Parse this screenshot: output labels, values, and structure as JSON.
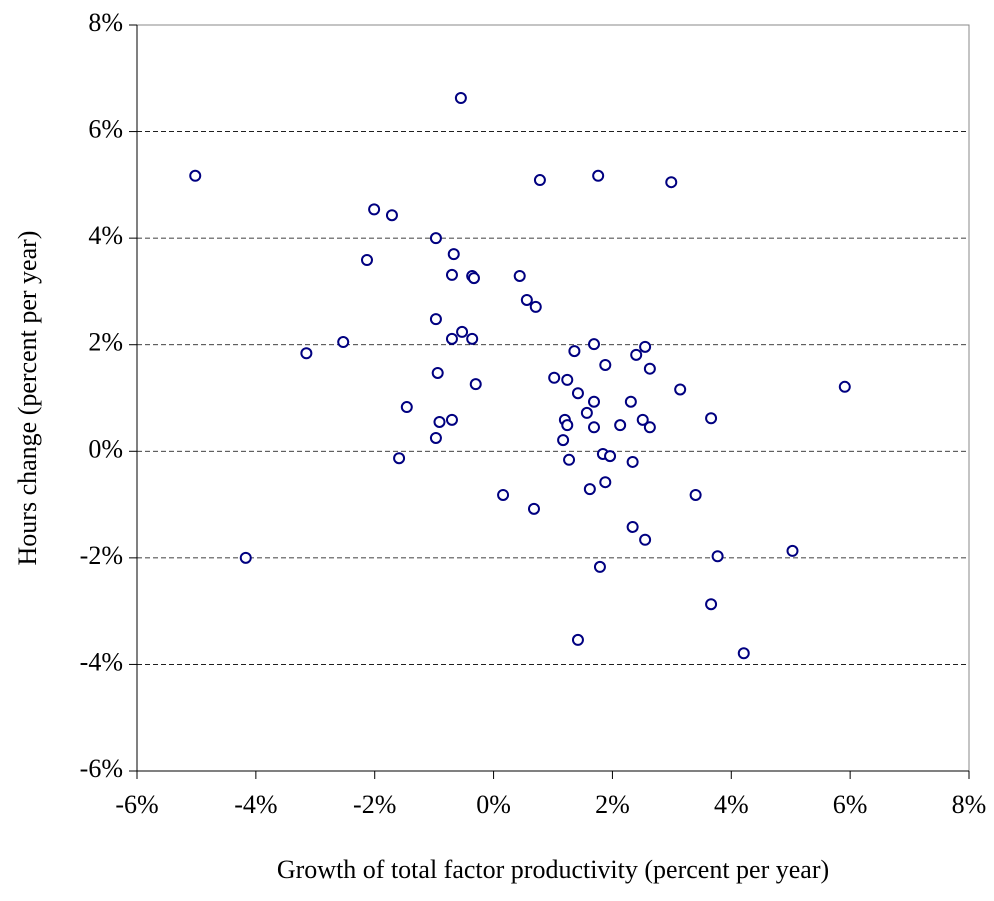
{
  "chart_data": {
    "type": "scatter",
    "xlabel": "Growth of total factor productivity (percent per year)",
    "ylabel": "Hours change (percent per year)",
    "xlim": [
      -6,
      8
    ],
    "ylim": [
      -6,
      8
    ],
    "xticks": [
      {
        "value": -6,
        "label": "-6%"
      },
      {
        "value": -4,
        "label": "-4%"
      },
      {
        "value": -2,
        "label": "-2%"
      },
      {
        "value": 0,
        "label": "0%"
      },
      {
        "value": 2,
        "label": "2%"
      },
      {
        "value": 4,
        "label": "4%"
      },
      {
        "value": 6,
        "label": "6%"
      },
      {
        "value": 8,
        "label": "8%"
      }
    ],
    "yticks": [
      {
        "value": -6,
        "label": "-6%"
      },
      {
        "value": -4,
        "label": "-4%"
      },
      {
        "value": -2,
        "label": "-2%"
      },
      {
        "value": 0,
        "label": "0%"
      },
      {
        "value": 2,
        "label": "2%"
      },
      {
        "value": 4,
        "label": "4%"
      },
      {
        "value": 6,
        "label": "6%"
      },
      {
        "value": 8,
        "label": "8%"
      }
    ],
    "grid": true,
    "color": "#000080",
    "x": [
      -5.02,
      -0.55,
      -2.01,
      -1.71,
      -2.13,
      -0.97,
      -0.67,
      -0.7,
      -0.36,
      -0.33,
      0.44,
      0.56,
      0.71,
      0.78,
      1.76,
      2.99,
      -0.97,
      -0.53,
      -0.7,
      -0.36,
      -3.15,
      -2.53,
      -0.94,
      -0.3,
      -1.46,
      -0.91,
      -0.7,
      -0.97,
      -1.59,
      -4.17,
      0.16,
      0.68,
      1.02,
      1.24,
      1.36,
      1.69,
      1.88,
      1.42,
      1.57,
      1.69,
      1.2,
      1.24,
      1.69,
      1.17,
      1.27,
      1.84,
      1.96,
      1.62,
      1.88,
      2.13,
      2.31,
      2.55,
      2.4,
      2.63,
      2.51,
      2.63,
      2.34,
      2.34,
      2.55,
      1.79,
      1.42,
      3.14,
      3.66,
      3.4,
      3.77,
      3.66,
      4.21,
      5.03,
      5.91
    ],
    "values": [
      5.17,
      6.63,
      4.54,
      4.43,
      3.59,
      4.0,
      3.7,
      3.31,
      3.29,
      3.25,
      3.29,
      2.84,
      2.71,
      5.09,
      5.17,
      5.05,
      2.48,
      2.24,
      2.11,
      2.11,
      1.84,
      2.05,
      1.47,
      1.26,
      0.83,
      0.55,
      0.59,
      0.25,
      -0.13,
      -2.0,
      -0.82,
      -1.08,
      1.38,
      1.34,
      1.88,
      2.01,
      1.62,
      1.09,
      0.72,
      0.93,
      0.59,
      0.49,
      0.45,
      0.21,
      -0.16,
      -0.05,
      -0.09,
      -0.71,
      -0.58,
      0.49,
      0.93,
      1.96,
      1.81,
      1.55,
      0.59,
      0.45,
      -0.2,
      -1.42,
      -1.66,
      -2.17,
      -3.54,
      1.16,
      0.62,
      -0.82,
      -1.97,
      -2.87,
      -3.79,
      -1.87,
      1.21
    ]
  }
}
